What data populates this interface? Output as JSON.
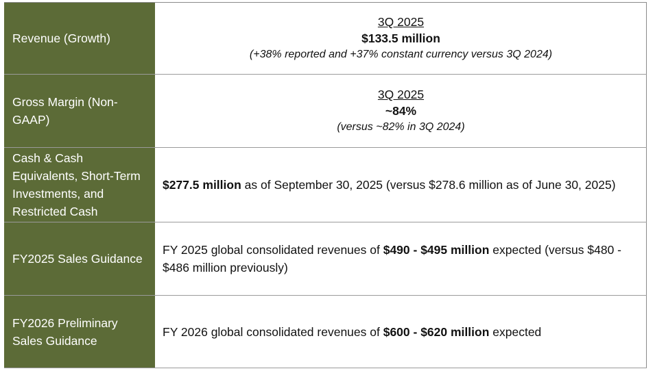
{
  "table": {
    "rows": [
      {
        "label": "Revenue (Growth)",
        "period": "3Q 2025",
        "value": "$133.5 million",
        "note": "(+38% reported and +37% constant currency versus 3Q 2024)"
      },
      {
        "label": "Gross Margin (Non-GAAP)",
        "period": "3Q 2025",
        "value": "~84%",
        "note": "(versus ~82% in 3Q 2024)"
      },
      {
        "label": "Cash & Cash Equivalents, Short-Term Investments, and Restricted Cash",
        "segments": [
          {
            "text": "$277.5 million",
            "bold": true
          },
          {
            "text": " as of September 30, 2025 (versus $278.6 million as of June 30, 2025)",
            "bold": false
          }
        ]
      },
      {
        "label": "FY2025 Sales Guidance",
        "segments": [
          {
            "text": "FY 2025 global consolidated revenues of ",
            "bold": false
          },
          {
            "text": "$490 - $495 million",
            "bold": true
          },
          {
            "text": " expected (versus $480 - $486 million previously)",
            "bold": false
          }
        ]
      },
      {
        "label": "FY2026 Preliminary Sales Guidance",
        "segments": [
          {
            "text": "FY 2026 global consolidated revenues of ",
            "bold": false
          },
          {
            "text": "$600 - $620 million",
            "bold": true
          },
          {
            "text": " expected",
            "bold": false
          }
        ]
      }
    ]
  }
}
